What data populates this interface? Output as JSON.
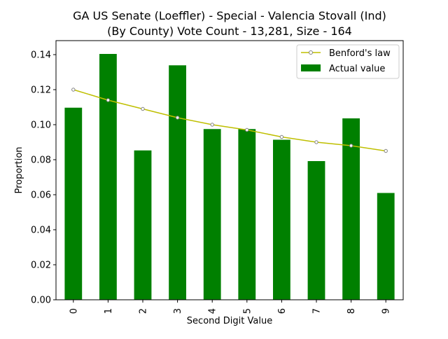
{
  "chart_data": {
    "type": "bar",
    "title_line1": "GA US Senate (Loeffler) - Special - Valencia Stovall (Ind)",
    "title_line2": "(By County) Vote Count - 13,281, Size - 164",
    "xlabel": "Second Digit Value",
    "ylabel": "Proportion",
    "categories": [
      "0",
      "1",
      "2",
      "3",
      "4",
      "5",
      "6",
      "7",
      "8",
      "9"
    ],
    "ylim": [
      0,
      0.148
    ],
    "yticks": [
      0.0,
      0.02,
      0.04,
      0.06,
      0.08,
      0.1,
      0.12,
      0.14
    ],
    "ytick_labels": [
      "0.00",
      "0.02",
      "0.04",
      "0.06",
      "0.08",
      "0.10",
      "0.12",
      "0.14"
    ],
    "grid": false,
    "legend_position": "top-right",
    "series": [
      {
        "name": "Actual value",
        "kind": "bar",
        "color": "#008000",
        "values": [
          0.1097,
          0.1404,
          0.0853,
          0.1339,
          0.0975,
          0.0975,
          0.0914,
          0.0792,
          0.1036,
          0.061
        ]
      },
      {
        "name": "Benford's law",
        "kind": "line",
        "color": "#bfbf00",
        "marker_color": "#808080",
        "values": [
          0.12,
          0.114,
          0.109,
          0.104,
          0.1,
          0.097,
          0.093,
          0.09,
          0.088,
          0.085
        ]
      }
    ]
  }
}
